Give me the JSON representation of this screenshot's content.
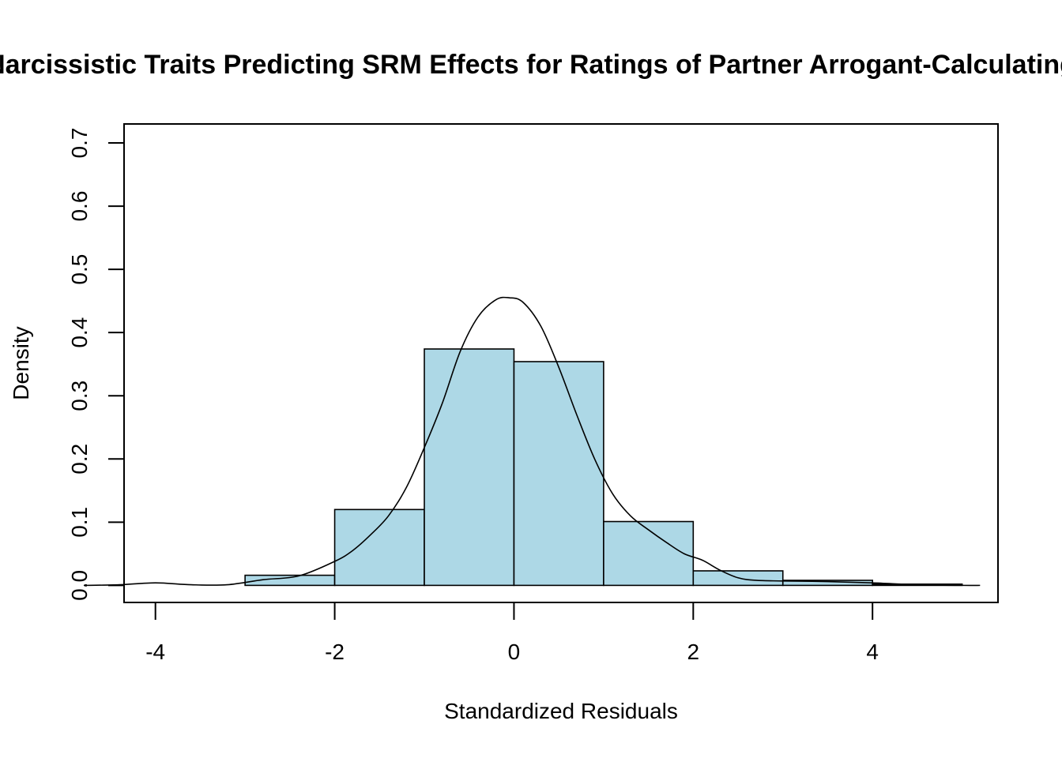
{
  "chart_data": {
    "type": "bar",
    "subtype": "histogram-with-density",
    "title": "Narcissistic Traits Predicting SRM Effects for Ratings of Partner Arrogant-Calculating",
    "xlabel": "Standardized Residuals",
    "ylabel": "Density",
    "xlim": [
      -4.35,
      5.4
    ],
    "ylim": [
      -0.027,
      0.73
    ],
    "x_ticks": [
      -4,
      -2,
      0,
      2,
      4
    ],
    "y_ticks": [
      0.0,
      0.1,
      0.2,
      0.3,
      0.4,
      0.5,
      0.6,
      0.7
    ],
    "x_tick_labels": [
      "-4",
      "-2",
      "0",
      "2",
      "4"
    ],
    "y_tick_labels": [
      "0.0",
      "0.1",
      "0.2",
      "0.3",
      "0.4",
      "0.5",
      "0.6",
      "0.7"
    ],
    "bins": [
      {
        "x0": -3,
        "x1": -2,
        "density": 0.016
      },
      {
        "x0": -2,
        "x1": -1,
        "density": 0.12
      },
      {
        "x0": -1,
        "x1": 0,
        "density": 0.374
      },
      {
        "x0": 0,
        "x1": 1,
        "density": 0.354
      },
      {
        "x0": 1,
        "x1": 2,
        "density": 0.101
      },
      {
        "x0": 2,
        "x1": 3,
        "density": 0.023
      },
      {
        "x0": 3,
        "x1": 4,
        "density": 0.008
      },
      {
        "x0": 4,
        "x1": 5,
        "density": 0.002
      }
    ],
    "density_curve": {
      "x": [
        -4.8,
        -4.4,
        -4.0,
        -3.6,
        -3.2,
        -2.8,
        -2.4,
        -2.0,
        -1.8,
        -1.6,
        -1.4,
        -1.2,
        -1.0,
        -0.8,
        -0.6,
        -0.4,
        -0.2,
        -0.05,
        0.1,
        0.3,
        0.5,
        0.7,
        0.9,
        1.1,
        1.3,
        1.5,
        1.7,
        1.9,
        2.1,
        2.3,
        2.5,
        2.7,
        3.0,
        3.5,
        4.0,
        4.5,
        5.0,
        5.2
      ],
      "y": [
        0.0,
        0.001,
        0.004,
        0.001,
        0.001,
        0.009,
        0.015,
        0.038,
        0.055,
        0.08,
        0.11,
        0.155,
        0.218,
        0.288,
        0.37,
        0.425,
        0.452,
        0.455,
        0.448,
        0.41,
        0.345,
        0.27,
        0.2,
        0.145,
        0.11,
        0.088,
        0.068,
        0.05,
        0.04,
        0.024,
        0.012,
        0.008,
        0.007,
        0.006,
        0.004,
        0.001,
        0.0,
        0.0
      ]
    },
    "bar_fill": "#add8e6",
    "bar_stroke": "#000000",
    "grid": false,
    "legend": "none"
  }
}
